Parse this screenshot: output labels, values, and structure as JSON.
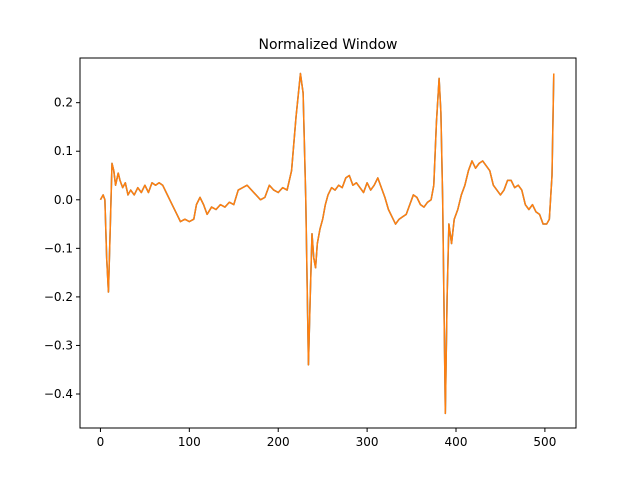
{
  "chart_data": {
    "type": "line",
    "title": "Normalized Window",
    "xlabel": "",
    "ylabel": "",
    "xlim": [
      -23,
      535
    ],
    "ylim": [
      -0.47,
      0.292
    ],
    "xticks": [
      0,
      100,
      200,
      300,
      400,
      500
    ],
    "xtick_labels": [
      "0",
      "100",
      "200",
      "300",
      "400",
      "500"
    ],
    "yticks": [
      -0.4,
      -0.3,
      -0.2,
      -0.1,
      0.0,
      0.1,
      0.2
    ],
    "ytick_labels": [
      "−0.4",
      "−0.3",
      "−0.2",
      "−0.1",
      "0.0",
      "0.1",
      "0.2"
    ],
    "grid": false,
    "series": [
      {
        "color": "#1f77b4",
        "points": [
          [
            0,
            0.0
          ],
          [
            3,
            0.01
          ],
          [
            5,
            0.0
          ],
          [
            7,
            -0.12
          ],
          [
            9,
            -0.19
          ],
          [
            11,
            -0.06
          ],
          [
            13,
            0.075
          ],
          [
            15,
            0.06
          ],
          [
            17,
            0.03
          ],
          [
            20,
            0.055
          ],
          [
            22,
            0.04
          ],
          [
            25,
            0.025
          ],
          [
            28,
            0.035
          ],
          [
            31,
            0.01
          ],
          [
            34,
            0.02
          ],
          [
            38,
            0.01
          ],
          [
            42,
            0.025
          ],
          [
            46,
            0.015
          ],
          [
            50,
            0.03
          ],
          [
            54,
            0.015
          ],
          [
            58,
            0.035
          ],
          [
            62,
            0.03
          ],
          [
            66,
            0.035
          ],
          [
            70,
            0.03
          ],
          [
            74,
            0.015
          ],
          [
            78,
            0.0
          ],
          [
            82,
            -0.015
          ],
          [
            86,
            -0.03
          ],
          [
            90,
            -0.045
          ],
          [
            95,
            -0.04
          ],
          [
            100,
            -0.045
          ],
          [
            105,
            -0.04
          ],
          [
            108,
            -0.01
          ],
          [
            112,
            0.005
          ],
          [
            116,
            -0.01
          ],
          [
            120,
            -0.03
          ],
          [
            125,
            -0.015
          ],
          [
            130,
            -0.02
          ],
          [
            135,
            -0.01
          ],
          [
            140,
            -0.015
          ],
          [
            145,
            -0.005
          ],
          [
            150,
            -0.01
          ],
          [
            155,
            0.02
          ],
          [
            160,
            0.025
          ],
          [
            165,
            0.03
          ],
          [
            170,
            0.02
          ],
          [
            175,
            0.01
          ],
          [
            180,
            0.0
          ],
          [
            185,
            0.005
          ],
          [
            190,
            0.03
          ],
          [
            195,
            0.02
          ],
          [
            200,
            0.015
          ],
          [
            205,
            0.025
          ],
          [
            210,
            0.02
          ],
          [
            215,
            0.06
          ],
          [
            220,
            0.17
          ],
          [
            225,
            0.26
          ],
          [
            228,
            0.22
          ],
          [
            231,
            0.0
          ],
          [
            234,
            -0.34
          ],
          [
            236,
            -0.2
          ],
          [
            238,
            -0.07
          ],
          [
            240,
            -0.12
          ],
          [
            242,
            -0.14
          ],
          [
            244,
            -0.09
          ],
          [
            247,
            -0.06
          ],
          [
            250,
            -0.04
          ],
          [
            253,
            -0.01
          ],
          [
            256,
            0.01
          ],
          [
            260,
            0.025
          ],
          [
            264,
            0.02
          ],
          [
            268,
            0.03
          ],
          [
            272,
            0.025
          ],
          [
            276,
            0.045
          ],
          [
            280,
            0.05
          ],
          [
            284,
            0.03
          ],
          [
            288,
            0.035
          ],
          [
            292,
            0.025
          ],
          [
            296,
            0.015
          ],
          [
            300,
            0.035
          ],
          [
            304,
            0.02
          ],
          [
            308,
            0.03
          ],
          [
            312,
            0.045
          ],
          [
            316,
            0.025
          ],
          [
            320,
            0.005
          ],
          [
            324,
            -0.02
          ],
          [
            328,
            -0.035
          ],
          [
            332,
            -0.05
          ],
          [
            336,
            -0.04
          ],
          [
            340,
            -0.035
          ],
          [
            344,
            -0.03
          ],
          [
            348,
            -0.01
          ],
          [
            352,
            0.01
          ],
          [
            356,
            0.005
          ],
          [
            360,
            -0.01
          ],
          [
            364,
            -0.015
          ],
          [
            368,
            -0.005
          ],
          [
            372,
            0.0
          ],
          [
            375,
            0.03
          ],
          [
            378,
            0.16
          ],
          [
            381,
            0.25
          ],
          [
            383,
            0.18
          ],
          [
            385,
            0.0
          ],
          [
            388,
            -0.44
          ],
          [
            390,
            -0.2
          ],
          [
            392,
            -0.05
          ],
          [
            395,
            -0.09
          ],
          [
            398,
            -0.04
          ],
          [
            402,
            -0.02
          ],
          [
            406,
            0.01
          ],
          [
            410,
            0.03
          ],
          [
            414,
            0.06
          ],
          [
            418,
            0.08
          ],
          [
            422,
            0.065
          ],
          [
            426,
            0.075
          ],
          [
            430,
            0.08
          ],
          [
            434,
            0.07
          ],
          [
            438,
            0.06
          ],
          [
            442,
            0.03
          ],
          [
            446,
            0.02
          ],
          [
            450,
            0.01
          ],
          [
            454,
            0.02
          ],
          [
            458,
            0.04
          ],
          [
            462,
            0.04
          ],
          [
            466,
            0.025
          ],
          [
            470,
            0.03
          ],
          [
            474,
            0.02
          ],
          [
            478,
            -0.01
          ],
          [
            482,
            -0.02
          ],
          [
            486,
            -0.01
          ],
          [
            490,
            -0.025
          ],
          [
            494,
            -0.03
          ],
          [
            498,
            -0.05
          ],
          [
            502,
            -0.05
          ],
          [
            505,
            -0.04
          ],
          [
            508,
            0.05
          ],
          [
            510,
            0.26
          ]
        ]
      },
      {
        "color": "#ff7f0e",
        "points": [
          [
            0,
            0.0
          ],
          [
            3,
            0.01
          ],
          [
            5,
            0.0
          ],
          [
            7,
            -0.12
          ],
          [
            9,
            -0.19
          ],
          [
            11,
            -0.06
          ],
          [
            13,
            0.075
          ],
          [
            15,
            0.06
          ],
          [
            17,
            0.03
          ],
          [
            20,
            0.055
          ],
          [
            22,
            0.04
          ],
          [
            25,
            0.025
          ],
          [
            28,
            0.035
          ],
          [
            31,
            0.01
          ],
          [
            34,
            0.02
          ],
          [
            38,
            0.01
          ],
          [
            42,
            0.025
          ],
          [
            46,
            0.015
          ],
          [
            50,
            0.03
          ],
          [
            54,
            0.015
          ],
          [
            58,
            0.035
          ],
          [
            62,
            0.03
          ],
          [
            66,
            0.035
          ],
          [
            70,
            0.03
          ],
          [
            74,
            0.015
          ],
          [
            78,
            0.0
          ],
          [
            82,
            -0.015
          ],
          [
            86,
            -0.03
          ],
          [
            90,
            -0.045
          ],
          [
            95,
            -0.04
          ],
          [
            100,
            -0.045
          ],
          [
            105,
            -0.04
          ],
          [
            108,
            -0.01
          ],
          [
            112,
            0.005
          ],
          [
            116,
            -0.01
          ],
          [
            120,
            -0.03
          ],
          [
            125,
            -0.015
          ],
          [
            130,
            -0.02
          ],
          [
            135,
            -0.01
          ],
          [
            140,
            -0.015
          ],
          [
            145,
            -0.005
          ],
          [
            150,
            -0.01
          ],
          [
            155,
            0.02
          ],
          [
            160,
            0.025
          ],
          [
            165,
            0.03
          ],
          [
            170,
            0.02
          ],
          [
            175,
            0.01
          ],
          [
            180,
            0.0
          ],
          [
            185,
            0.005
          ],
          [
            190,
            0.03
          ],
          [
            195,
            0.02
          ],
          [
            200,
            0.015
          ],
          [
            205,
            0.025
          ],
          [
            210,
            0.02
          ],
          [
            215,
            0.06
          ],
          [
            220,
            0.17
          ],
          [
            225,
            0.26
          ],
          [
            228,
            0.22
          ],
          [
            231,
            0.0
          ],
          [
            234,
            -0.34
          ],
          [
            236,
            -0.2
          ],
          [
            238,
            -0.07
          ],
          [
            240,
            -0.12
          ],
          [
            242,
            -0.14
          ],
          [
            244,
            -0.09
          ],
          [
            247,
            -0.06
          ],
          [
            250,
            -0.04
          ],
          [
            253,
            -0.01
          ],
          [
            256,
            0.01
          ],
          [
            260,
            0.025
          ],
          [
            264,
            0.02
          ],
          [
            268,
            0.03
          ],
          [
            272,
            0.025
          ],
          [
            276,
            0.045
          ],
          [
            280,
            0.05
          ],
          [
            284,
            0.03
          ],
          [
            288,
            0.035
          ],
          [
            292,
            0.025
          ],
          [
            296,
            0.015
          ],
          [
            300,
            0.035
          ],
          [
            304,
            0.02
          ],
          [
            308,
            0.03
          ],
          [
            312,
            0.045
          ],
          [
            316,
            0.025
          ],
          [
            320,
            0.005
          ],
          [
            324,
            -0.02
          ],
          [
            328,
            -0.035
          ],
          [
            332,
            -0.05
          ],
          [
            336,
            -0.04
          ],
          [
            340,
            -0.035
          ],
          [
            344,
            -0.03
          ],
          [
            348,
            -0.01
          ],
          [
            352,
            0.01
          ],
          [
            356,
            0.005
          ],
          [
            360,
            -0.01
          ],
          [
            364,
            -0.015
          ],
          [
            368,
            -0.005
          ],
          [
            372,
            0.0
          ],
          [
            375,
            0.03
          ],
          [
            378,
            0.16
          ],
          [
            381,
            0.25
          ],
          [
            383,
            0.18
          ],
          [
            385,
            0.0
          ],
          [
            388,
            -0.44
          ],
          [
            390,
            -0.2
          ],
          [
            392,
            -0.05
          ],
          [
            395,
            -0.09
          ],
          [
            398,
            -0.04
          ],
          [
            402,
            -0.02
          ],
          [
            406,
            0.01
          ],
          [
            410,
            0.03
          ],
          [
            414,
            0.06
          ],
          [
            418,
            0.08
          ],
          [
            422,
            0.065
          ],
          [
            426,
            0.075
          ],
          [
            430,
            0.08
          ],
          [
            434,
            0.07
          ],
          [
            438,
            0.06
          ],
          [
            442,
            0.03
          ],
          [
            446,
            0.02
          ],
          [
            450,
            0.01
          ],
          [
            454,
            0.02
          ],
          [
            458,
            0.04
          ],
          [
            462,
            0.04
          ],
          [
            466,
            0.025
          ],
          [
            470,
            0.03
          ],
          [
            474,
            0.02
          ],
          [
            478,
            -0.01
          ],
          [
            482,
            -0.02
          ],
          [
            486,
            -0.01
          ],
          [
            490,
            -0.025
          ],
          [
            494,
            -0.03
          ],
          [
            498,
            -0.05
          ],
          [
            502,
            -0.05
          ],
          [
            505,
            -0.04
          ],
          [
            508,
            0.05
          ],
          [
            510,
            0.26
          ]
        ]
      }
    ]
  }
}
